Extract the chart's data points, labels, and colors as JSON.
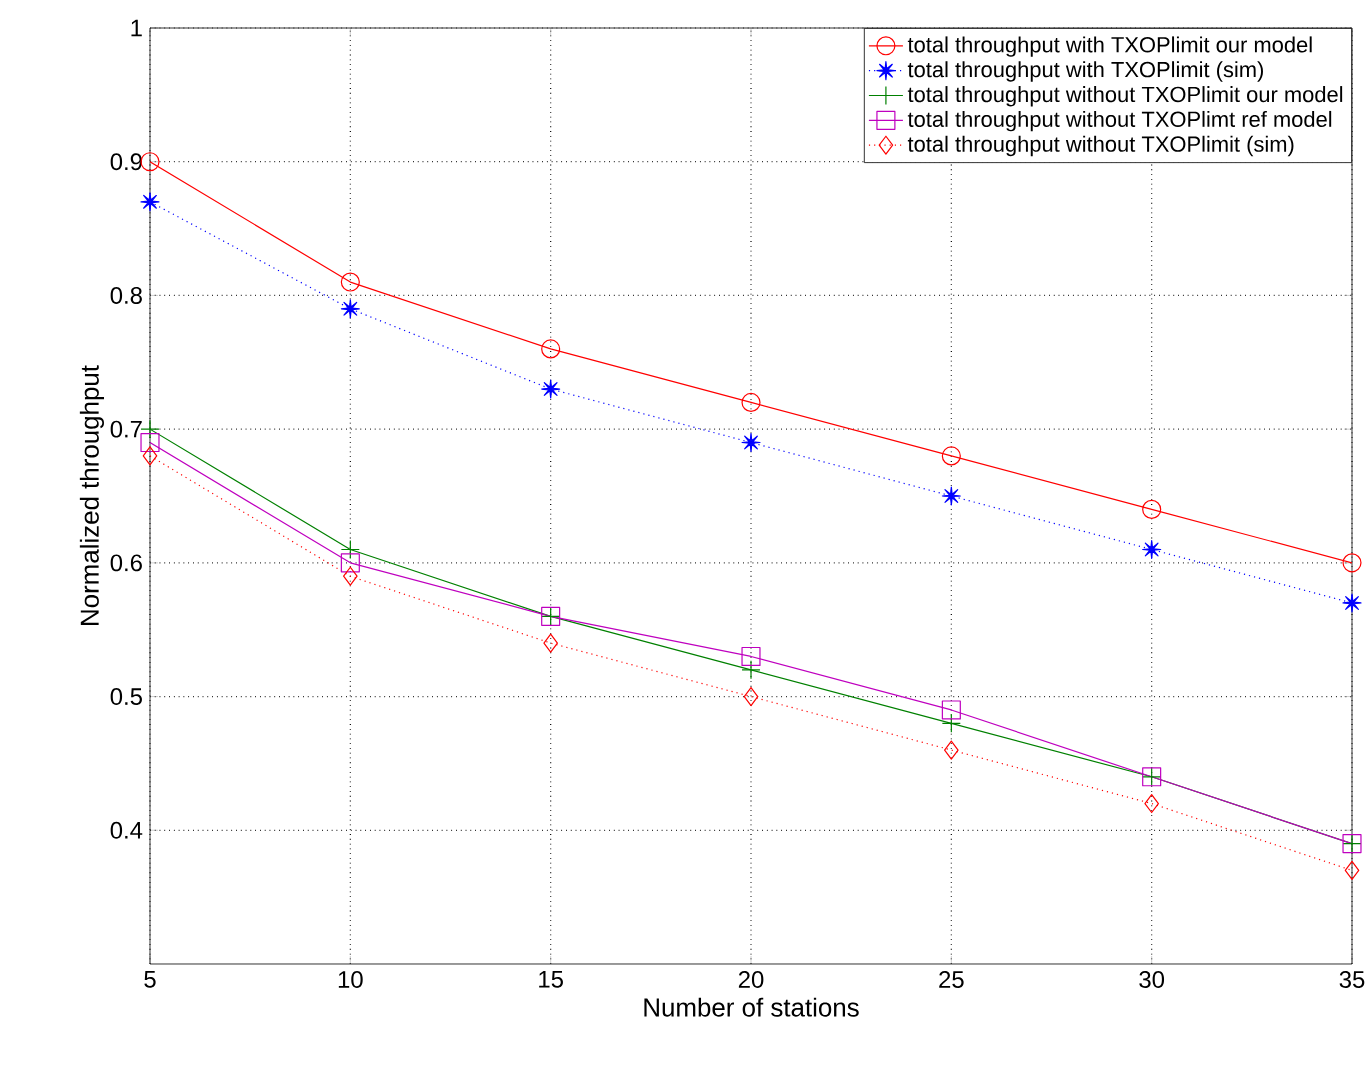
{
  "chart_data": {
    "type": "line",
    "xlabel": "Number of stations",
    "ylabel": "Normalized throughput",
    "x": [
      5,
      10,
      15,
      20,
      25,
      30,
      35
    ],
    "xlim": [
      5,
      35
    ],
    "xticks": [
      5,
      10,
      15,
      20,
      25,
      30,
      35
    ],
    "ylim": [
      0.3,
      1
    ],
    "yticks": [
      0.4,
      0.5,
      0.6,
      0.7,
      0.8,
      0.9,
      1
    ],
    "grid": true,
    "legend": "top right",
    "series": [
      {
        "name": "total throughput with TXOPlimit our model",
        "color": "#ff0000",
        "marker": "circle",
        "line_style": "solid",
        "values": [
          0.9,
          0.81,
          0.76,
          0.72,
          0.68,
          0.64,
          0.6
        ]
      },
      {
        "name": "total throughput with TXOPlimit (sim)",
        "color": "#0000ff",
        "marker": "star",
        "line_style": "dotted",
        "values": [
          0.87,
          0.79,
          0.73,
          0.69,
          0.65,
          0.61,
          0.57
        ]
      },
      {
        "name": "total throughput without TXOPlimit our model",
        "color": "#008000",
        "marker": "cross",
        "line_style": "solid",
        "values": [
          0.7,
          0.61,
          0.56,
          0.52,
          0.48,
          0.44,
          0.39
        ]
      },
      {
        "name": "total throughput without TXOPlimt ref model",
        "color": "#bf00bf",
        "marker": "square",
        "line_style": "solid",
        "values": [
          0.69,
          0.6,
          0.56,
          0.53,
          0.49,
          0.44,
          0.39
        ]
      },
      {
        "name": "total throughput without TXOPlimit (sim)",
        "color": "#ff0000",
        "marker": "diamond",
        "line_style": "dotted",
        "values": [
          0.68,
          0.59,
          0.54,
          0.5,
          0.46,
          0.42,
          0.37
        ]
      }
    ]
  }
}
